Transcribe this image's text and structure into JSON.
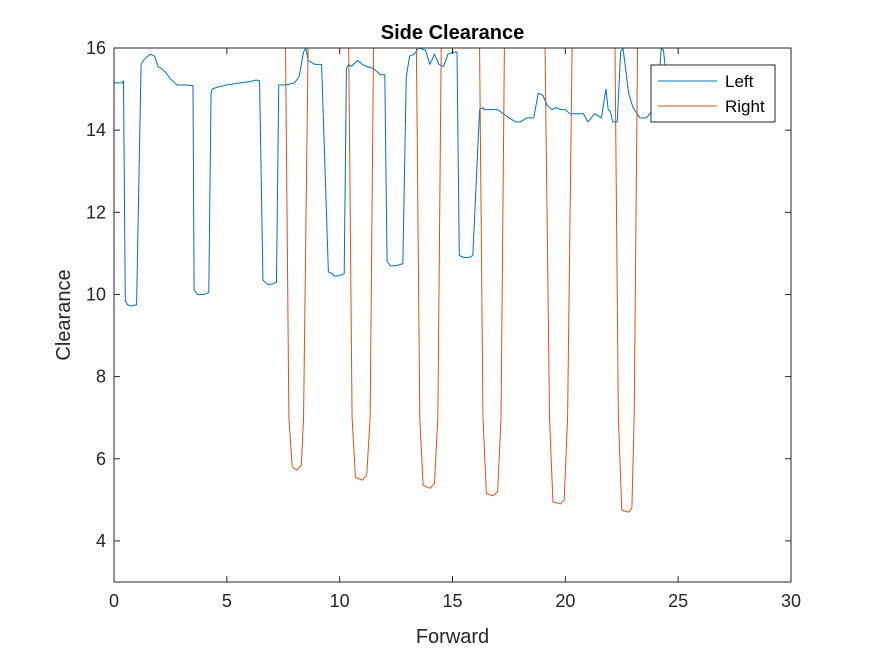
{
  "chart_data": {
    "type": "line",
    "title": "Side Clearance",
    "xlabel": "Forward",
    "ylabel": "Clearance",
    "xlim": [
      0,
      30
    ],
    "ylim": [
      3,
      16
    ],
    "xticks": [
      0,
      5,
      10,
      15,
      20,
      25,
      30
    ],
    "yticks": [
      4,
      6,
      8,
      10,
      12,
      14,
      16
    ],
    "grid": false,
    "legend_position": "top-right",
    "series": [
      {
        "name": "Left",
        "color": "#0072BD",
        "x": [
          0,
          0.35,
          0.42,
          0.5,
          0.6,
          0.75,
          1.0,
          1.2,
          1.3,
          1.4,
          1.6,
          1.8,
          1.95,
          2.1,
          2.3,
          2.5,
          2.8,
          3.2,
          3.5,
          3.55,
          3.7,
          4.0,
          4.2,
          4.3,
          4.35,
          4.6,
          5.0,
          5.6,
          6.0,
          6.3,
          6.45,
          6.6,
          6.8,
          7.0,
          7.2,
          7.3,
          7.6,
          8.0,
          8.2,
          8.4,
          8.5,
          8.6,
          8.75,
          8.9,
          9.2,
          9.5,
          9.7,
          9.75,
          9.9,
          10.2,
          10.3,
          10.4,
          10.5,
          10.8,
          11.0,
          11.2,
          11.5,
          11.8,
          12.0,
          12.1,
          12.25,
          12.5,
          12.8,
          12.95,
          13.1,
          13.3,
          13.5,
          13.8,
          14.0,
          14.2,
          14.4,
          14.6,
          14.8,
          15.0,
          15.2,
          15.3,
          15.5,
          15.75,
          15.9,
          16.2,
          16.35,
          16.4,
          16.6,
          17.0,
          17.5,
          17.8,
          18.0,
          18.3,
          18.6,
          18.8,
          19.0,
          19.2,
          19.4,
          19.6,
          19.8,
          20.0,
          20.2,
          20.5,
          20.8,
          21.0,
          21.3,
          21.6,
          21.8,
          21.9,
          22.0,
          22.1,
          22.3,
          22.45,
          22.55,
          22.65,
          22.8,
          23.0,
          23.3,
          23.6,
          23.9,
          24.1,
          24.25,
          24.35,
          24.5,
          24.6,
          24.75,
          24.9
        ],
        "values": [
          15.15,
          15.15,
          15.2,
          9.85,
          9.75,
          9.72,
          9.75,
          15.6,
          15.7,
          15.75,
          15.85,
          15.8,
          15.55,
          15.5,
          15.4,
          15.25,
          15.1,
          15.1,
          15.08,
          10.1,
          10.0,
          10.0,
          10.05,
          14.9,
          15.0,
          15.05,
          15.1,
          15.15,
          15.18,
          15.22,
          15.2,
          10.35,
          10.25,
          10.25,
          10.3,
          15.1,
          15.1,
          15.15,
          15.3,
          15.9,
          16.0,
          15.7,
          15.65,
          15.6,
          15.6,
          10.55,
          10.5,
          10.45,
          10.45,
          10.5,
          15.5,
          15.6,
          15.55,
          15.7,
          15.6,
          15.55,
          15.5,
          15.35,
          15.35,
          10.8,
          10.7,
          10.7,
          10.75,
          15.3,
          15.8,
          15.85,
          16.0,
          15.95,
          15.6,
          15.85,
          15.6,
          15.55,
          15.85,
          15.9,
          15.9,
          10.95,
          10.9,
          10.9,
          10.95,
          14.5,
          14.55,
          14.5,
          14.5,
          14.5,
          14.3,
          14.2,
          14.2,
          14.3,
          14.3,
          14.9,
          14.85,
          14.6,
          14.5,
          14.55,
          14.5,
          14.5,
          14.4,
          14.4,
          14.4,
          14.2,
          14.4,
          14.3,
          15.0,
          14.5,
          14.45,
          14.2,
          14.2,
          15.9,
          16.0,
          15.6,
          14.9,
          14.55,
          14.3,
          14.3,
          14.5,
          14.8,
          16.0,
          15.95,
          15.1,
          15.0,
          15.1,
          15.1
        ]
      },
      {
        "name": "Right",
        "color": "#D95319",
        "x": [
          0,
          7.6,
          7.75,
          7.9,
          8.1,
          8.3,
          8.4,
          8.6,
          10.4,
          10.55,
          10.7,
          11.0,
          11.2,
          11.35,
          11.5,
          13.4,
          13.55,
          13.7,
          14.0,
          14.2,
          14.35,
          14.5,
          16.2,
          16.35,
          16.5,
          16.8,
          17.0,
          17.15,
          17.3,
          19.1,
          19.3,
          19.45,
          19.8,
          19.95,
          20.1,
          20.3,
          22.2,
          22.35,
          22.5,
          22.8,
          22.95,
          23.05,
          23.2,
          25.9
        ],
        "values": [
          16,
          16,
          7.0,
          5.8,
          5.72,
          5.85,
          7.0,
          16,
          16,
          7.0,
          5.55,
          5.48,
          5.6,
          7.0,
          16,
          16,
          7.0,
          5.35,
          5.28,
          5.4,
          7.0,
          16,
          16,
          7.0,
          5.15,
          5.1,
          5.2,
          7.0,
          16,
          16,
          7.0,
          4.95,
          4.9,
          5.0,
          7.0,
          16,
          16,
          7.0,
          4.75,
          4.7,
          4.8,
          7.0,
          16,
          16
        ]
      }
    ]
  }
}
